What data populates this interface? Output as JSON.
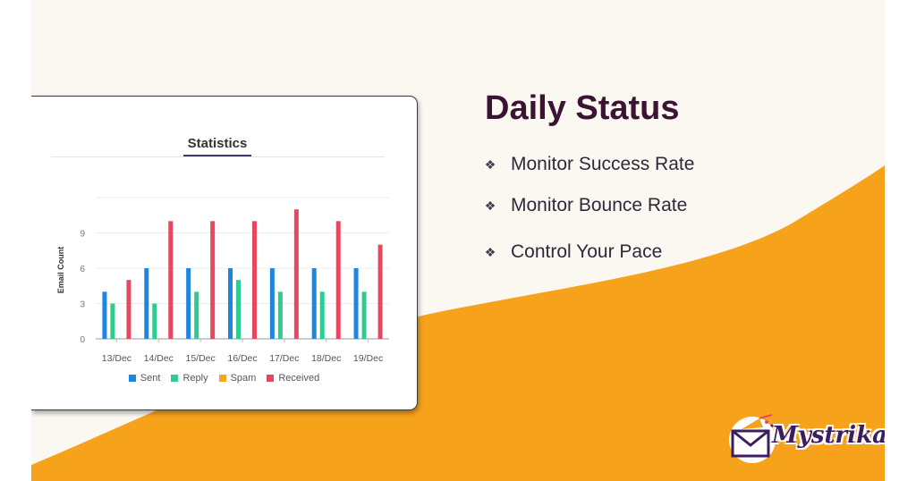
{
  "chart": {
    "title": "Statistics",
    "legend_labels": [
      "Sent",
      "Reply",
      "Spam",
      "Received"
    ]
  },
  "chart_data": {
    "type": "bar",
    "title": "Statistics",
    "xlabel": "",
    "ylabel": "Email Count",
    "ylim": [
      0,
      12
    ],
    "yticks": [
      0,
      3,
      6,
      9
    ],
    "grid": true,
    "legend": "bottom",
    "categories": [
      "13/Dec",
      "14/Dec",
      "15/Dec",
      "16/Dec",
      "17/Dec",
      "18/Dec",
      "19/Dec"
    ],
    "series": [
      {
        "name": "Sent",
        "color": "#1f86e0",
        "values": [
          4,
          6,
          6,
          6,
          6,
          6,
          6
        ]
      },
      {
        "name": "Reply",
        "color": "#2ecc8f",
        "values": [
          3,
          3,
          4,
          5,
          4,
          4,
          4
        ]
      },
      {
        "name": "Spam",
        "color": "#f2a81d",
        "values": [
          0,
          0,
          0,
          0,
          0,
          0,
          0
        ]
      },
      {
        "name": "Received",
        "color": "#e8485f",
        "values": [
          5,
          10,
          10,
          10,
          11,
          10,
          8
        ]
      }
    ]
  },
  "side": {
    "heading": "Daily Status",
    "bullets": [
      "Monitor Success Rate",
      "Monitor Bounce Rate",
      "Control Your Pace"
    ]
  },
  "logo": {
    "text": "Mystrika"
  },
  "colors": {
    "background": "#fbf7f1",
    "accent": "#f7a21b",
    "heading": "#3c1433"
  }
}
